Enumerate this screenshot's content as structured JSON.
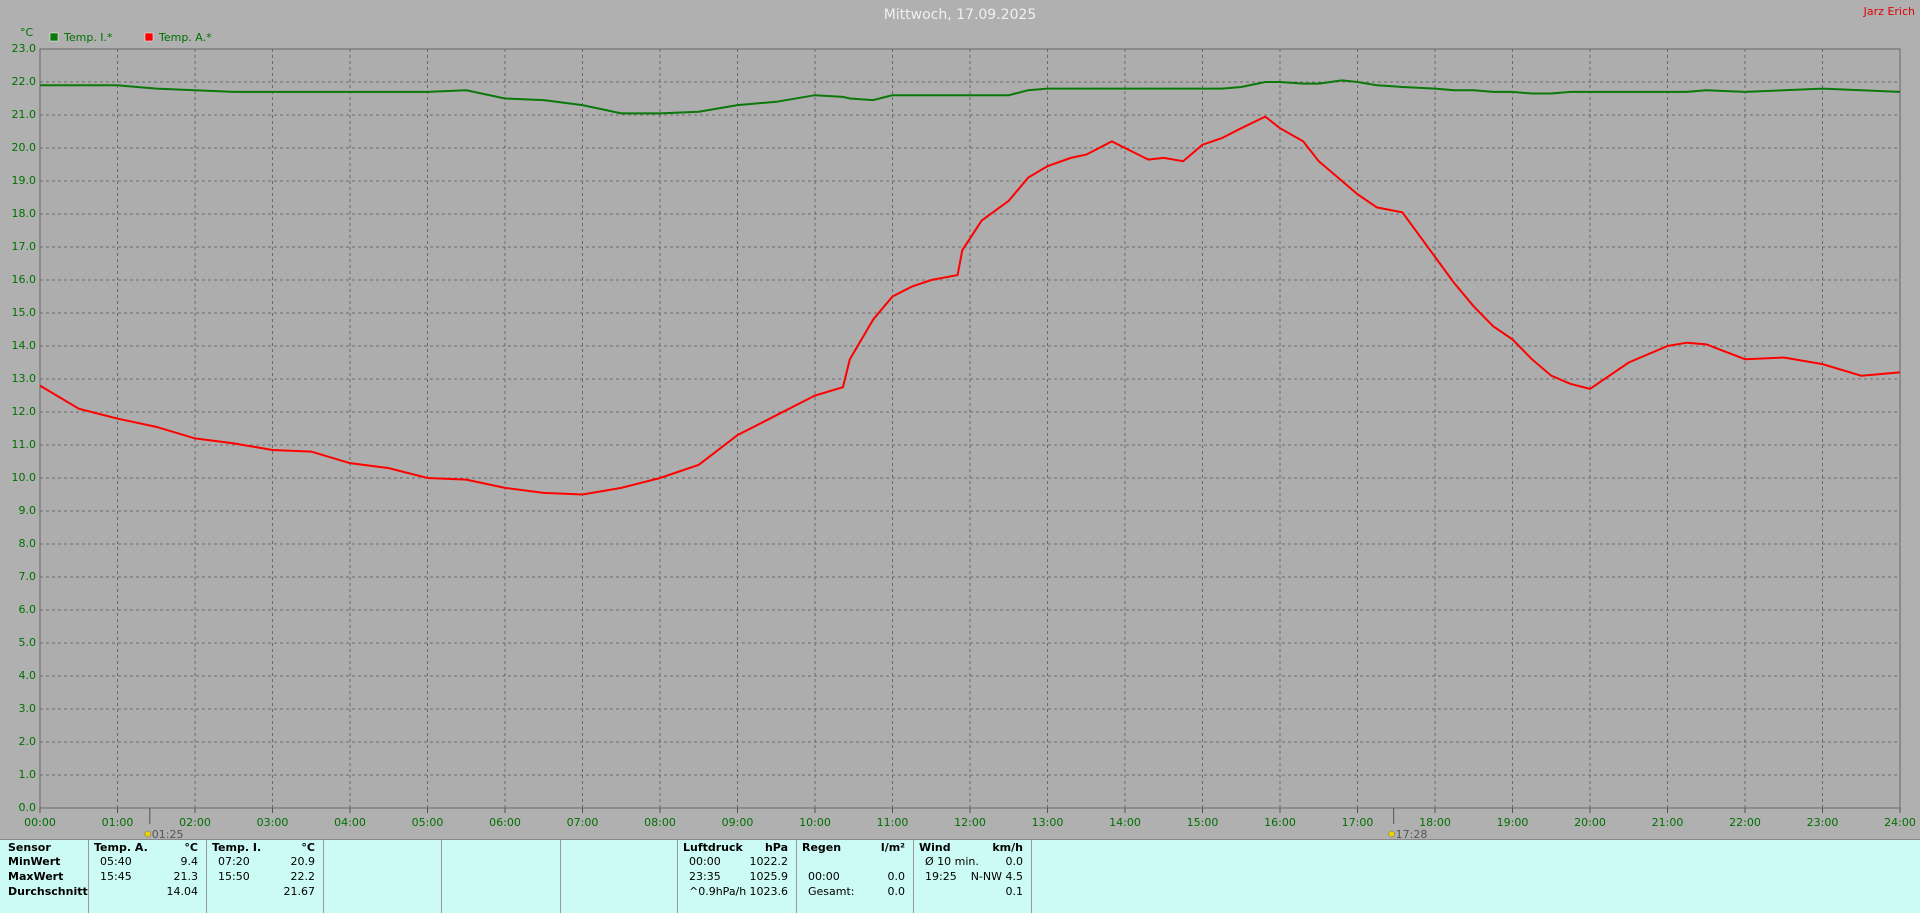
{
  "chart_data": {
    "type": "line",
    "title": "Mittwoch, 17.09.2025",
    "user": "Jarz Erich",
    "y_label": "°C",
    "x": [
      0,
      0.5,
      1,
      1.5,
      2,
      2.5,
      3,
      3.5,
      4,
      4.5,
      5,
      5.5,
      6,
      6.5,
      7,
      7.5,
      8,
      8.5,
      9,
      9.5,
      10,
      10.36,
      10.45,
      10.75,
      11,
      11.25,
      11.5,
      11.84,
      11.9,
      12.15,
      12.5,
      12.75,
      13,
      13.3,
      13.5,
      13.83,
      14,
      14.3,
      14.5,
      14.75,
      15,
      15.25,
      15.5,
      15.81,
      16,
      16.3,
      16.5,
      16.8,
      17,
      17.25,
      17.58,
      18,
      18.25,
      18.5,
      18.75,
      19,
      19.25,
      19.5,
      19.75,
      20,
      20.5,
      21,
      21.25,
      21.5,
      22,
      22.5,
      23,
      23.5,
      24
    ],
    "series": [
      {
        "name": "Temp. I.*",
        "color": "#0a780a",
        "values": [
          21.9,
          21.9,
          21.9,
          21.8,
          21.75,
          21.7,
          21.7,
          21.7,
          21.7,
          21.7,
          21.7,
          21.75,
          21.5,
          21.45,
          21.3,
          21.05,
          21.05,
          21.1,
          21.3,
          21.4,
          21.6,
          21.55,
          21.5,
          21.45,
          21.6,
          21.6,
          21.6,
          21.6,
          21.6,
          21.6,
          21.6,
          21.75,
          21.8,
          21.8,
          21.8,
          21.8,
          21.8,
          21.8,
          21.8,
          21.8,
          21.8,
          21.8,
          21.85,
          22.0,
          22.0,
          21.95,
          21.95,
          22.05,
          22.0,
          21.9,
          21.85,
          21.8,
          21.75,
          21.75,
          21.7,
          21.7,
          21.65,
          21.65,
          21.7,
          21.7,
          21.7,
          21.7,
          21.7,
          21.75,
          21.7,
          21.75,
          21.8,
          21.75,
          21.7
        ]
      },
      {
        "name": "Temp. A.*",
        "color": "#ff0000",
        "values": [
          12.8,
          12.1,
          11.8,
          11.55,
          11.2,
          11.05,
          10.85,
          10.8,
          10.45,
          10.3,
          10.0,
          9.95,
          9.7,
          9.55,
          9.5,
          9.7,
          10.0,
          10.4,
          11.3,
          11.9,
          12.5,
          12.75,
          13.6,
          14.8,
          15.5,
          15.8,
          16.0,
          16.15,
          16.9,
          17.8,
          18.4,
          19.1,
          19.45,
          19.7,
          19.8,
          20.2,
          20.0,
          19.65,
          19.7,
          19.6,
          20.1,
          20.3,
          20.6,
          20.95,
          20.6,
          20.2,
          19.6,
          19.0,
          18.6,
          18.2,
          18.05,
          16.7,
          15.9,
          15.2,
          14.6,
          14.2,
          13.6,
          13.1,
          12.85,
          12.7,
          13.5,
          14.0,
          14.1,
          14.05,
          13.6,
          13.65,
          13.45,
          13.1,
          13.2
        ]
      }
    ],
    "xlim": [
      0,
      24
    ],
    "xticks": [
      {
        "value": 0,
        "label": "00:00"
      },
      {
        "value": 1,
        "label": "01:00"
      },
      {
        "value": 2,
        "label": "02:00"
      },
      {
        "value": 3,
        "label": "03:00"
      },
      {
        "value": 4,
        "label": "04:00"
      },
      {
        "value": 5,
        "label": "05:00"
      },
      {
        "value": 6,
        "label": "06:00"
      },
      {
        "value": 7,
        "label": "07:00"
      },
      {
        "value": 8,
        "label": "08:00"
      },
      {
        "value": 9,
        "label": "09:00"
      },
      {
        "value": 10,
        "label": "10:00"
      },
      {
        "value": 11,
        "label": "11:00"
      },
      {
        "value": 12,
        "label": "12:00"
      },
      {
        "value": 13,
        "label": "13:00"
      },
      {
        "value": 14,
        "label": "14:00"
      },
      {
        "value": 15,
        "label": "15:00"
      },
      {
        "value": 16,
        "label": "16:00"
      },
      {
        "value": 17,
        "label": "17:00"
      },
      {
        "value": 18,
        "label": "18:00"
      },
      {
        "value": 19,
        "label": "19:00"
      },
      {
        "value": 20,
        "label": "20:00"
      },
      {
        "value": 21,
        "label": "21:00"
      },
      {
        "value": 22,
        "label": "22:00"
      },
      {
        "value": 23,
        "label": "23:00"
      },
      {
        "value": 24,
        "label": "24:00"
      }
    ],
    "ylim": [
      0,
      23
    ],
    "yticks": [
      {
        "value": 0,
        "label": "0.0"
      },
      {
        "value": 1,
        "label": "1.0"
      },
      {
        "value": 2,
        "label": "2.0"
      },
      {
        "value": 3,
        "label": "3.0"
      },
      {
        "value": 4,
        "label": "4.0"
      },
      {
        "value": 5,
        "label": "5.0"
      },
      {
        "value": 6,
        "label": "6.0"
      },
      {
        "value": 7,
        "label": "7.0"
      },
      {
        "value": 8,
        "label": "8.0"
      },
      {
        "value": 9,
        "label": "9.0"
      },
      {
        "value": 10,
        "label": "10.0"
      },
      {
        "value": 11,
        "label": "11.0"
      },
      {
        "value": 12,
        "label": "12.0"
      },
      {
        "value": 13,
        "label": "13.0"
      },
      {
        "value": 14,
        "label": "14.0"
      },
      {
        "value": 15,
        "label": "15.0"
      },
      {
        "value": 16,
        "label": "16.0"
      },
      {
        "value": 17,
        "label": "17.0"
      },
      {
        "value": 18,
        "label": "18.0"
      },
      {
        "value": 19,
        "label": "19.0"
      },
      {
        "value": 20,
        "label": "20.0"
      },
      {
        "value": 21,
        "label": "21.0"
      },
      {
        "value": 22,
        "label": "22.0"
      },
      {
        "value": 23,
        "label": "23.0"
      }
    ],
    "grid": true,
    "annotations": [
      {
        "x": 1.4167,
        "label": "01:25"
      },
      {
        "x": 17.4667,
        "label": "17:28"
      }
    ]
  },
  "stats": {
    "label_column": {
      "header": "Sensor",
      "rows": [
        "MinWert",
        "MaxWert",
        "Durchschnitt"
      ]
    },
    "blocks": [
      {
        "name": "Temp. A.",
        "unit": "°C",
        "rows": [
          [
            "05:40",
            "9.4"
          ],
          [
            "15:45",
            "21.3"
          ],
          [
            "14.04"
          ]
        ]
      },
      {
        "name": "Temp. I.",
        "unit": "°C",
        "rows": [
          [
            "07:20",
            "20.9"
          ],
          [
            "15:50",
            "22.2"
          ],
          [
            "21.67"
          ]
        ]
      },
      {
        "name": "Luftdruck",
        "unit": "hPa",
        "rows": [
          [
            "00:00",
            "1022.2"
          ],
          [
            "23:35",
            "1025.9"
          ],
          [
            "^0.9hPa/h",
            "1023.6"
          ]
        ]
      },
      {
        "name": "Regen",
        "unit": "l/m²",
        "rows": [
          [
            "00:00",
            "0.0"
          ],
          [
            "Gesamt:",
            "0.0"
          ]
        ]
      },
      {
        "name": "Wind",
        "unit": "km/h",
        "rows": [
          [
            "Ø 10 min.",
            "0.0"
          ],
          [
            "19:25",
            "N-NW 4.5"
          ],
          [
            "0.1"
          ]
        ]
      }
    ]
  }
}
